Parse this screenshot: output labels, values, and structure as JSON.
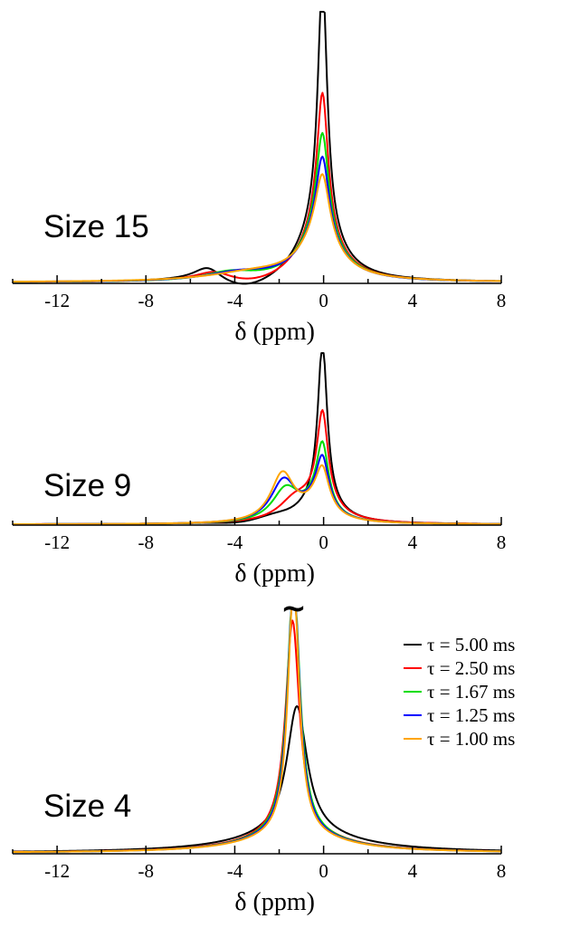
{
  "chart_data": [
    {
      "type": "line",
      "panel_label": "Size 15",
      "xlabel": "δ (ppm)",
      "xlim": [
        -14,
        8
      ],
      "xticks": [
        -12,
        -8,
        -4,
        0,
        4,
        8
      ],
      "ylim": [
        0,
        1.0
      ],
      "series": [
        {
          "name": "τ = 5.00 ms",
          "color": "#000000",
          "peaks": [
            {
              "c": -0.05,
              "h": 0.93,
              "w": 0.25
            },
            {
              "c": -0.2,
              "h": 0.2,
              "w": 1.1
            },
            {
              "c": -5.2,
              "h": 0.055,
              "w": 0.8
            }
          ],
          "dip": {
            "c": -3.5,
            "h": -0.04,
            "s": 1.2
          }
        },
        {
          "name": "τ = 2.50 ms",
          "color": "#ff0000",
          "peaks": [
            {
              "c": -0.05,
              "h": 0.52,
              "w": 0.3
            },
            {
              "c": -0.2,
              "h": 0.18,
              "w": 1.1
            },
            {
              "c": -4.9,
              "h": 0.035,
              "w": 1.0
            }
          ],
          "dip": {
            "c": -3.3,
            "h": -0.02,
            "s": 1.2
          }
        },
        {
          "name": "τ = 1.67 ms",
          "color": "#00dd00",
          "peaks": [
            {
              "c": -0.05,
              "h": 0.38,
              "w": 0.33
            },
            {
              "c": -0.2,
              "h": 0.17,
              "w": 1.1
            },
            {
              "c": -4.2,
              "h": 0.03,
              "w": 1.4
            }
          ],
          "dip": {
            "c": -3.0,
            "h": 0.0,
            "s": 1.2
          }
        },
        {
          "name": "τ = 1.25 ms",
          "color": "#0000ff",
          "peaks": [
            {
              "c": -0.05,
              "h": 0.3,
              "w": 0.35
            },
            {
              "c": -0.2,
              "h": 0.16,
              "w": 1.1
            },
            {
              "c": -3.8,
              "h": 0.03,
              "w": 1.8
            }
          ],
          "dip": {
            "c": -3.0,
            "h": 0.0,
            "s": 1.2
          }
        },
        {
          "name": "τ = 1.00 ms",
          "color": "#ffa500",
          "peaks": [
            {
              "c": -0.05,
              "h": 0.24,
              "w": 0.38
            },
            {
              "c": -0.2,
              "h": 0.15,
              "w": 1.1
            },
            {
              "c": -3.2,
              "h": 0.03,
              "w": 2.4
            }
          ],
          "dip": {
            "c": -3.0,
            "h": 0.0,
            "s": 1.2
          }
        }
      ]
    },
    {
      "type": "line",
      "panel_label": "Size 9",
      "xlabel": "δ (ppm)",
      "xlim": [
        -14,
        8
      ],
      "xticks": [
        -12,
        -8,
        -4,
        0,
        4,
        8
      ],
      "ylim": [
        0,
        1.0
      ],
      "series": [
        {
          "name": "τ = 5.00 ms",
          "color": "#000000",
          "peaks": [
            {
              "c": -0.05,
              "h": 0.93,
              "w": 0.25
            },
            {
              "c": -0.2,
              "h": 0.13,
              "w": 1.0
            },
            {
              "c": -2.2,
              "h": 0.03,
              "w": 1.2
            }
          ],
          "dip": {
            "c": -3.8,
            "h": -0.01,
            "s": 0.8
          }
        },
        {
          "name": "τ = 2.50 ms",
          "color": "#ff0000",
          "peaks": [
            {
              "c": -0.05,
              "h": 0.52,
              "w": 0.3
            },
            {
              "c": -0.2,
              "h": 0.11,
              "w": 1.0
            },
            {
              "c": -1.3,
              "h": 0.11,
              "w": 0.9
            }
          ],
          "dip": {
            "c": 0,
            "h": 0,
            "s": 1
          }
        },
        {
          "name": "τ = 1.67 ms",
          "color": "#00dd00",
          "peaks": [
            {
              "c": -0.05,
              "h": 0.36,
              "w": 0.32
            },
            {
              "c": -0.3,
              "h": 0.1,
              "w": 0.8
            },
            {
              "c": -1.7,
              "h": 0.19,
              "w": 0.75
            }
          ],
          "dip": {
            "c": 0,
            "h": 0,
            "s": 1
          }
        },
        {
          "name": "τ = 1.25 ms",
          "color": "#0000ff",
          "peaks": [
            {
              "c": -0.05,
              "h": 0.28,
              "w": 0.34
            },
            {
              "c": -0.3,
              "h": 0.1,
              "w": 0.8
            },
            {
              "c": -1.8,
              "h": 0.24,
              "w": 0.7
            }
          ],
          "dip": {
            "c": 0,
            "h": 0,
            "s": 1
          }
        },
        {
          "name": "τ = 1.00 ms",
          "color": "#ffa500",
          "peaks": [
            {
              "c": -0.05,
              "h": 0.22,
              "w": 0.36
            },
            {
              "c": -0.3,
              "h": 0.1,
              "w": 0.8
            },
            {
              "c": -1.85,
              "h": 0.28,
              "w": 0.65
            }
          ],
          "dip": {
            "c": 0,
            "h": 0,
            "s": 1
          }
        }
      ]
    },
    {
      "type": "line",
      "panel_label": "Size 4",
      "xlabel": "δ (ppm)",
      "xlim": [
        -14,
        8
      ],
      "xticks": [
        -12,
        -8,
        -4,
        0,
        4,
        8
      ],
      "ylim": [
        0,
        1.0
      ],
      "break_mark": "~",
      "series": [
        {
          "name": "τ = 5.00 ms",
          "color": "#000000",
          "peaks": [
            {
              "c": -1.2,
              "h": 0.52,
              "w": 0.55
            },
            {
              "c": -1.2,
              "h": 0.08,
              "w": 3.0
            }
          ],
          "dip": {
            "c": 0,
            "h": 0,
            "s": 1
          }
        },
        {
          "name": "τ = 2.50 ms",
          "color": "#ff0000",
          "peaks": [
            {
              "c": -1.4,
              "h": 0.88,
              "w": 0.38
            },
            {
              "c": -1.3,
              "h": 0.07,
              "w": 2.6
            }
          ],
          "dip": {
            "c": 0,
            "h": 0,
            "s": 1
          }
        },
        {
          "name": "τ = 1.67 ms",
          "color": "#00dd00",
          "peaks": [
            {
              "c": -1.35,
              "h": 1.05,
              "w": 0.34
            },
            {
              "c": -1.3,
              "h": 0.07,
              "w": 2.5
            }
          ],
          "dip": {
            "c": 0,
            "h": 0,
            "s": 1
          }
        },
        {
          "name": "τ = 1.25 ms",
          "color": "#0000ff",
          "peaks": [
            {
              "c": -1.35,
              "h": 1.05,
              "w": 0.32
            },
            {
              "c": -1.3,
              "h": 0.07,
              "w": 2.5
            }
          ],
          "dip": {
            "c": 0,
            "h": 0,
            "s": 1
          }
        },
        {
          "name": "τ = 1.00 ms",
          "color": "#ffa500",
          "peaks": [
            {
              "c": -1.35,
              "h": 1.05,
              "w": 0.3
            },
            {
              "c": -1.3,
              "h": 0.07,
              "w": 2.5
            }
          ],
          "dip": {
            "c": 0,
            "h": 0,
            "s": 1
          }
        }
      ]
    }
  ],
  "legend": [
    {
      "label": "τ = 5.00 ms",
      "color": "#000000"
    },
    {
      "label": "τ = 2.50 ms",
      "color": "#ff0000"
    },
    {
      "label": "τ = 1.67 ms",
      "color": "#00dd00"
    },
    {
      "label": "τ = 1.25 ms",
      "color": "#0000ff"
    },
    {
      "label": "τ = 1.00 ms",
      "color": "#ffa500"
    }
  ]
}
